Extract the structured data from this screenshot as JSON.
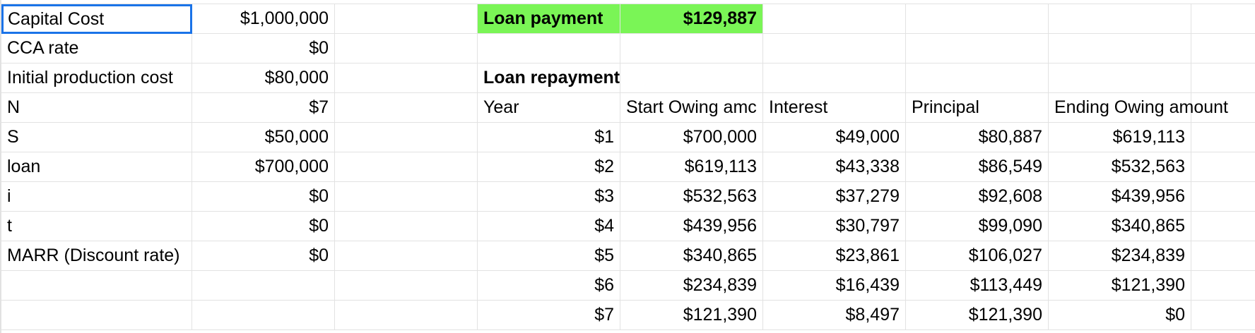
{
  "spreadsheet": {
    "rows": [
      [
        {
          "text": "Capital Cost",
          "align": "left",
          "selected": true
        },
        {
          "text": "$1,000,000",
          "align": "right"
        },
        {
          "text": ""
        },
        {
          "text": "Loan payment",
          "align": "left",
          "bold": true,
          "fill": "#7af556"
        },
        {
          "text": "$129,887",
          "align": "right",
          "bold": true,
          "fill": "#7af556"
        },
        {
          "text": ""
        },
        {
          "text": ""
        },
        {
          "text": ""
        },
        {
          "text": ""
        }
      ],
      [
        {
          "text": "CCA rate",
          "align": "left"
        },
        {
          "text": "$0",
          "align": "right"
        },
        {
          "text": ""
        },
        {
          "text": ""
        },
        {
          "text": ""
        },
        {
          "text": ""
        },
        {
          "text": ""
        },
        {
          "text": ""
        },
        {
          "text": ""
        }
      ],
      [
        {
          "text": "Initial production cost",
          "align": "left"
        },
        {
          "text": "$80,000",
          "align": "right"
        },
        {
          "text": ""
        },
        {
          "text": "Loan repayment",
          "align": "left",
          "bold": true
        },
        {
          "text": ""
        },
        {
          "text": ""
        },
        {
          "text": ""
        },
        {
          "text": ""
        },
        {
          "text": ""
        }
      ],
      [
        {
          "text": "N",
          "align": "left"
        },
        {
          "text": "$7",
          "align": "right"
        },
        {
          "text": ""
        },
        {
          "text": "Year",
          "align": "left"
        },
        {
          "text": "Start Owing amc",
          "align": "left",
          "clip": true
        },
        {
          "text": "Interest",
          "align": "left"
        },
        {
          "text": "Principal",
          "align": "left"
        },
        {
          "text": "Ending Owing amount",
          "align": "left"
        },
        {
          "text": ""
        }
      ],
      [
        {
          "text": "S",
          "align": "left"
        },
        {
          "text": "$50,000",
          "align": "right"
        },
        {
          "text": ""
        },
        {
          "text": "$1",
          "align": "right"
        },
        {
          "text": "$700,000",
          "align": "right"
        },
        {
          "text": "$49,000",
          "align": "right"
        },
        {
          "text": "$80,887",
          "align": "right"
        },
        {
          "text": "$619,113",
          "align": "right"
        },
        {
          "text": ""
        }
      ],
      [
        {
          "text": "loan",
          "align": "left"
        },
        {
          "text": "$700,000",
          "align": "right"
        },
        {
          "text": ""
        },
        {
          "text": "$2",
          "align": "right"
        },
        {
          "text": "$619,113",
          "align": "right"
        },
        {
          "text": "$43,338",
          "align": "right"
        },
        {
          "text": "$86,549",
          "align": "right"
        },
        {
          "text": "$532,563",
          "align": "right"
        },
        {
          "text": ""
        }
      ],
      [
        {
          "text": "i",
          "align": "left"
        },
        {
          "text": "$0",
          "align": "right"
        },
        {
          "text": ""
        },
        {
          "text": "$3",
          "align": "right"
        },
        {
          "text": "$532,563",
          "align": "right"
        },
        {
          "text": "$37,279",
          "align": "right"
        },
        {
          "text": "$92,608",
          "align": "right"
        },
        {
          "text": "$439,956",
          "align": "right"
        },
        {
          "text": ""
        }
      ],
      [
        {
          "text": "t",
          "align": "left"
        },
        {
          "text": "$0",
          "align": "right"
        },
        {
          "text": ""
        },
        {
          "text": "$4",
          "align": "right"
        },
        {
          "text": "$439,956",
          "align": "right"
        },
        {
          "text": "$30,797",
          "align": "right"
        },
        {
          "text": "$99,090",
          "align": "right"
        },
        {
          "text": "$340,865",
          "align": "right"
        },
        {
          "text": ""
        }
      ],
      [
        {
          "text": "MARR (Discount rate)",
          "align": "left"
        },
        {
          "text": "$0",
          "align": "right"
        },
        {
          "text": ""
        },
        {
          "text": "$5",
          "align": "right"
        },
        {
          "text": "$340,865",
          "align": "right"
        },
        {
          "text": "$23,861",
          "align": "right"
        },
        {
          "text": "$106,027",
          "align": "right"
        },
        {
          "text": "$234,839",
          "align": "right"
        },
        {
          "text": ""
        }
      ],
      [
        {
          "text": ""
        },
        {
          "text": ""
        },
        {
          "text": ""
        },
        {
          "text": "$6",
          "align": "right"
        },
        {
          "text": "$234,839",
          "align": "right"
        },
        {
          "text": "$16,439",
          "align": "right"
        },
        {
          "text": "$113,449",
          "align": "right"
        },
        {
          "text": "$121,390",
          "align": "right"
        },
        {
          "text": ""
        }
      ],
      [
        {
          "text": ""
        },
        {
          "text": ""
        },
        {
          "text": ""
        },
        {
          "text": "$7",
          "align": "right"
        },
        {
          "text": "$121,390",
          "align": "right"
        },
        {
          "text": "$8,497",
          "align": "right"
        },
        {
          "text": "$121,390",
          "align": "right"
        },
        {
          "text": "$0",
          "align": "right"
        },
        {
          "text": ""
        }
      ]
    ]
  }
}
